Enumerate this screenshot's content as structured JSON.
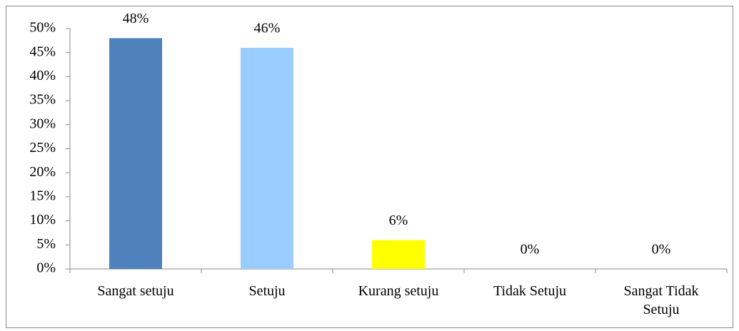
{
  "chart_data": {
    "type": "bar",
    "categories": [
      "Sangat setuju",
      "Setuju",
      "Kurang setuju",
      "Tidak Setuju",
      "Sangat Tidak Setuju"
    ],
    "values": [
      48,
      46,
      6,
      0,
      0
    ],
    "value_labels": [
      "48%",
      "46%",
      "6%",
      "0%",
      "0%"
    ],
    "colors": [
      "#4f81bd",
      "#99ccff",
      "#ffff00",
      "#4f81bd",
      "#4f81bd"
    ],
    "ylim": [
      0,
      50
    ],
    "yticks": [
      {
        "value": 0,
        "label": "0%"
      },
      {
        "value": 5,
        "label": "5%"
      },
      {
        "value": 10,
        "label": "10%"
      },
      {
        "value": 15,
        "label": "15%"
      },
      {
        "value": 20,
        "label": "20%"
      },
      {
        "value": 25,
        "label": "25%"
      },
      {
        "value": 30,
        "label": "30%"
      },
      {
        "value": 35,
        "label": "35%"
      },
      {
        "value": 40,
        "label": "40%"
      },
      {
        "value": 45,
        "label": "45%"
      },
      {
        "value": 50,
        "label": "50%"
      }
    ],
    "grid": false
  }
}
